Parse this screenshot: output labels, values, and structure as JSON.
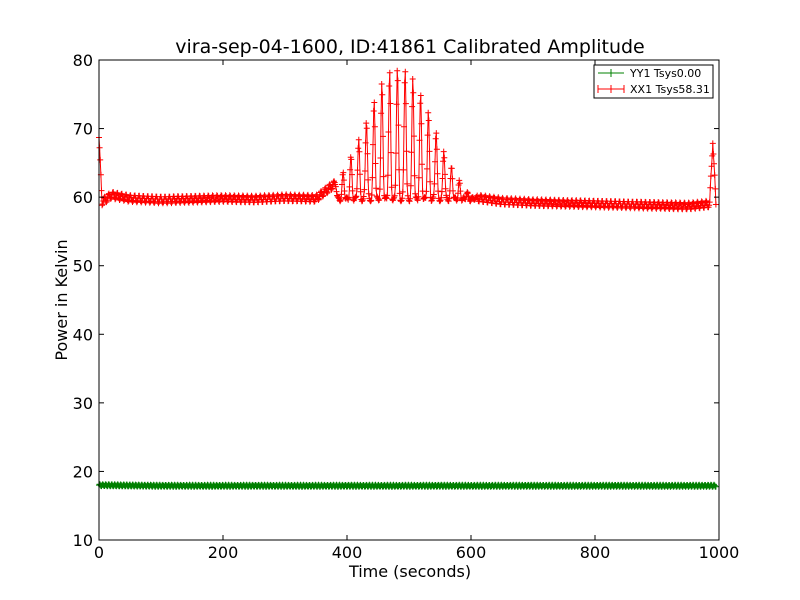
{
  "chart_data": {
    "type": "line",
    "title": "vira-sep-04-1600, ID:41861 Calibrated Amplitude",
    "xlabel": "Time (seconds)",
    "ylabel": "Power in Kelvin",
    "xlim": [
      0,
      1000
    ],
    "ylim": [
      10,
      80
    ],
    "x_ticks": [
      0,
      200,
      400,
      600,
      800,
      1000
    ],
    "y_ticks": [
      10,
      20,
      30,
      40,
      50,
      60,
      70,
      80
    ],
    "grid": false,
    "legend_position": "top-right",
    "marker": "+",
    "series": [
      {
        "name": "YY1 Tsys0.00",
        "color": "#008000",
        "points": [
          [
            0,
            18.0
          ],
          [
            100,
            17.9
          ],
          [
            200,
            17.9
          ],
          [
            300,
            17.9
          ],
          [
            400,
            17.9
          ],
          [
            500,
            17.9
          ],
          [
            600,
            17.9
          ],
          [
            700,
            17.9
          ],
          [
            800,
            17.9
          ],
          [
            900,
            17.9
          ],
          [
            995,
            17.9
          ]
        ]
      },
      {
        "name": "XX1 Tsys58.31",
        "color": "#ff0000",
        "points": [
          [
            0,
            68.7
          ],
          [
            5,
            59.3
          ],
          [
            20,
            60.3
          ],
          [
            50,
            59.8
          ],
          [
            100,
            59.6
          ],
          [
            150,
            59.7
          ],
          [
            200,
            59.8
          ],
          [
            250,
            59.7
          ],
          [
            300,
            59.9
          ],
          [
            350,
            59.8
          ],
          [
            388,
            62.5
          ],
          [
            400,
            64.5
          ],
          [
            413,
            67.0
          ],
          [
            425,
            69.9
          ],
          [
            438,
            72.8
          ],
          [
            450,
            75.5
          ],
          [
            463,
            77.5
          ],
          [
            475,
            78.7
          ],
          [
            488,
            79.0
          ],
          [
            500,
            78.6
          ],
          [
            513,
            76.0
          ],
          [
            525,
            73.5
          ],
          [
            538,
            71.0
          ],
          [
            550,
            68.2
          ],
          [
            563,
            65.5
          ],
          [
            575,
            63.0
          ],
          [
            588,
            61.2
          ],
          [
            600,
            60.0
          ],
          [
            650,
            59.4
          ],
          [
            700,
            59.2
          ],
          [
            800,
            59.0
          ],
          [
            900,
            58.8
          ],
          [
            950,
            58.7
          ],
          [
            985,
            59.0
          ],
          [
            990,
            68.3
          ],
          [
            995,
            59.0
          ]
        ]
      }
    ]
  }
}
